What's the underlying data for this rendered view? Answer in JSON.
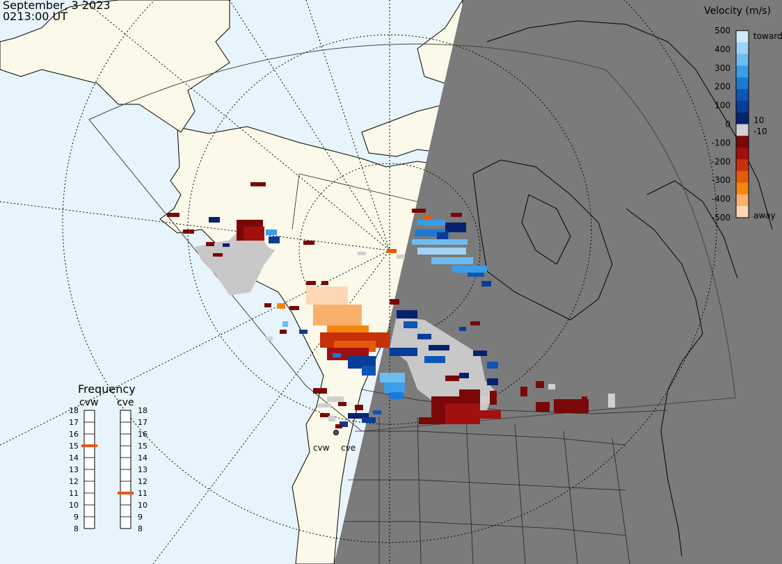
{
  "header": {
    "date": "September, 3 2023",
    "time": "0213:00 UT"
  },
  "velocity_scale": {
    "title": "Velocity (m/s)",
    "ticks": [
      "500",
      "400",
      "300",
      "200",
      "100",
      "0",
      "-100",
      "-200",
      "-300",
      "-400",
      "-500"
    ],
    "inner_ticks": [
      "10",
      "-10"
    ],
    "toward_label": "toward",
    "away_label": "away",
    "colors": [
      "#cfe9fb",
      "#9ed3f5",
      "#6ebcef",
      "#3b9ee6",
      "#1a7bd6",
      "#0c56b8",
      "#083d97",
      "#06226f",
      "#d0d0d0",
      "#7a0808",
      "#a10f0f",
      "#c8300a",
      "#e65a0a",
      "#f5860e",
      "#f9b06b",
      "#fdd7b3"
    ]
  },
  "frequency": {
    "title": "Frequency",
    "radars": [
      {
        "name": "cvw",
        "value": 15,
        "marker_color": "#e8541c"
      },
      {
        "name": "cve",
        "value": 11,
        "marker_color": "#e8541c"
      }
    ],
    "ticks": [
      "18",
      "17",
      "16",
      "15",
      "14",
      "13",
      "12",
      "11",
      "10",
      "9",
      "8"
    ]
  },
  "radar_sites": [
    {
      "name": "cvw"
    },
    {
      "name": "cve"
    }
  ],
  "colors": {
    "ocean": "#e8f4fb",
    "land": "#fbf9e9",
    "night": "#7b7b7b",
    "ground_scatter": "#c8c8c8"
  }
}
